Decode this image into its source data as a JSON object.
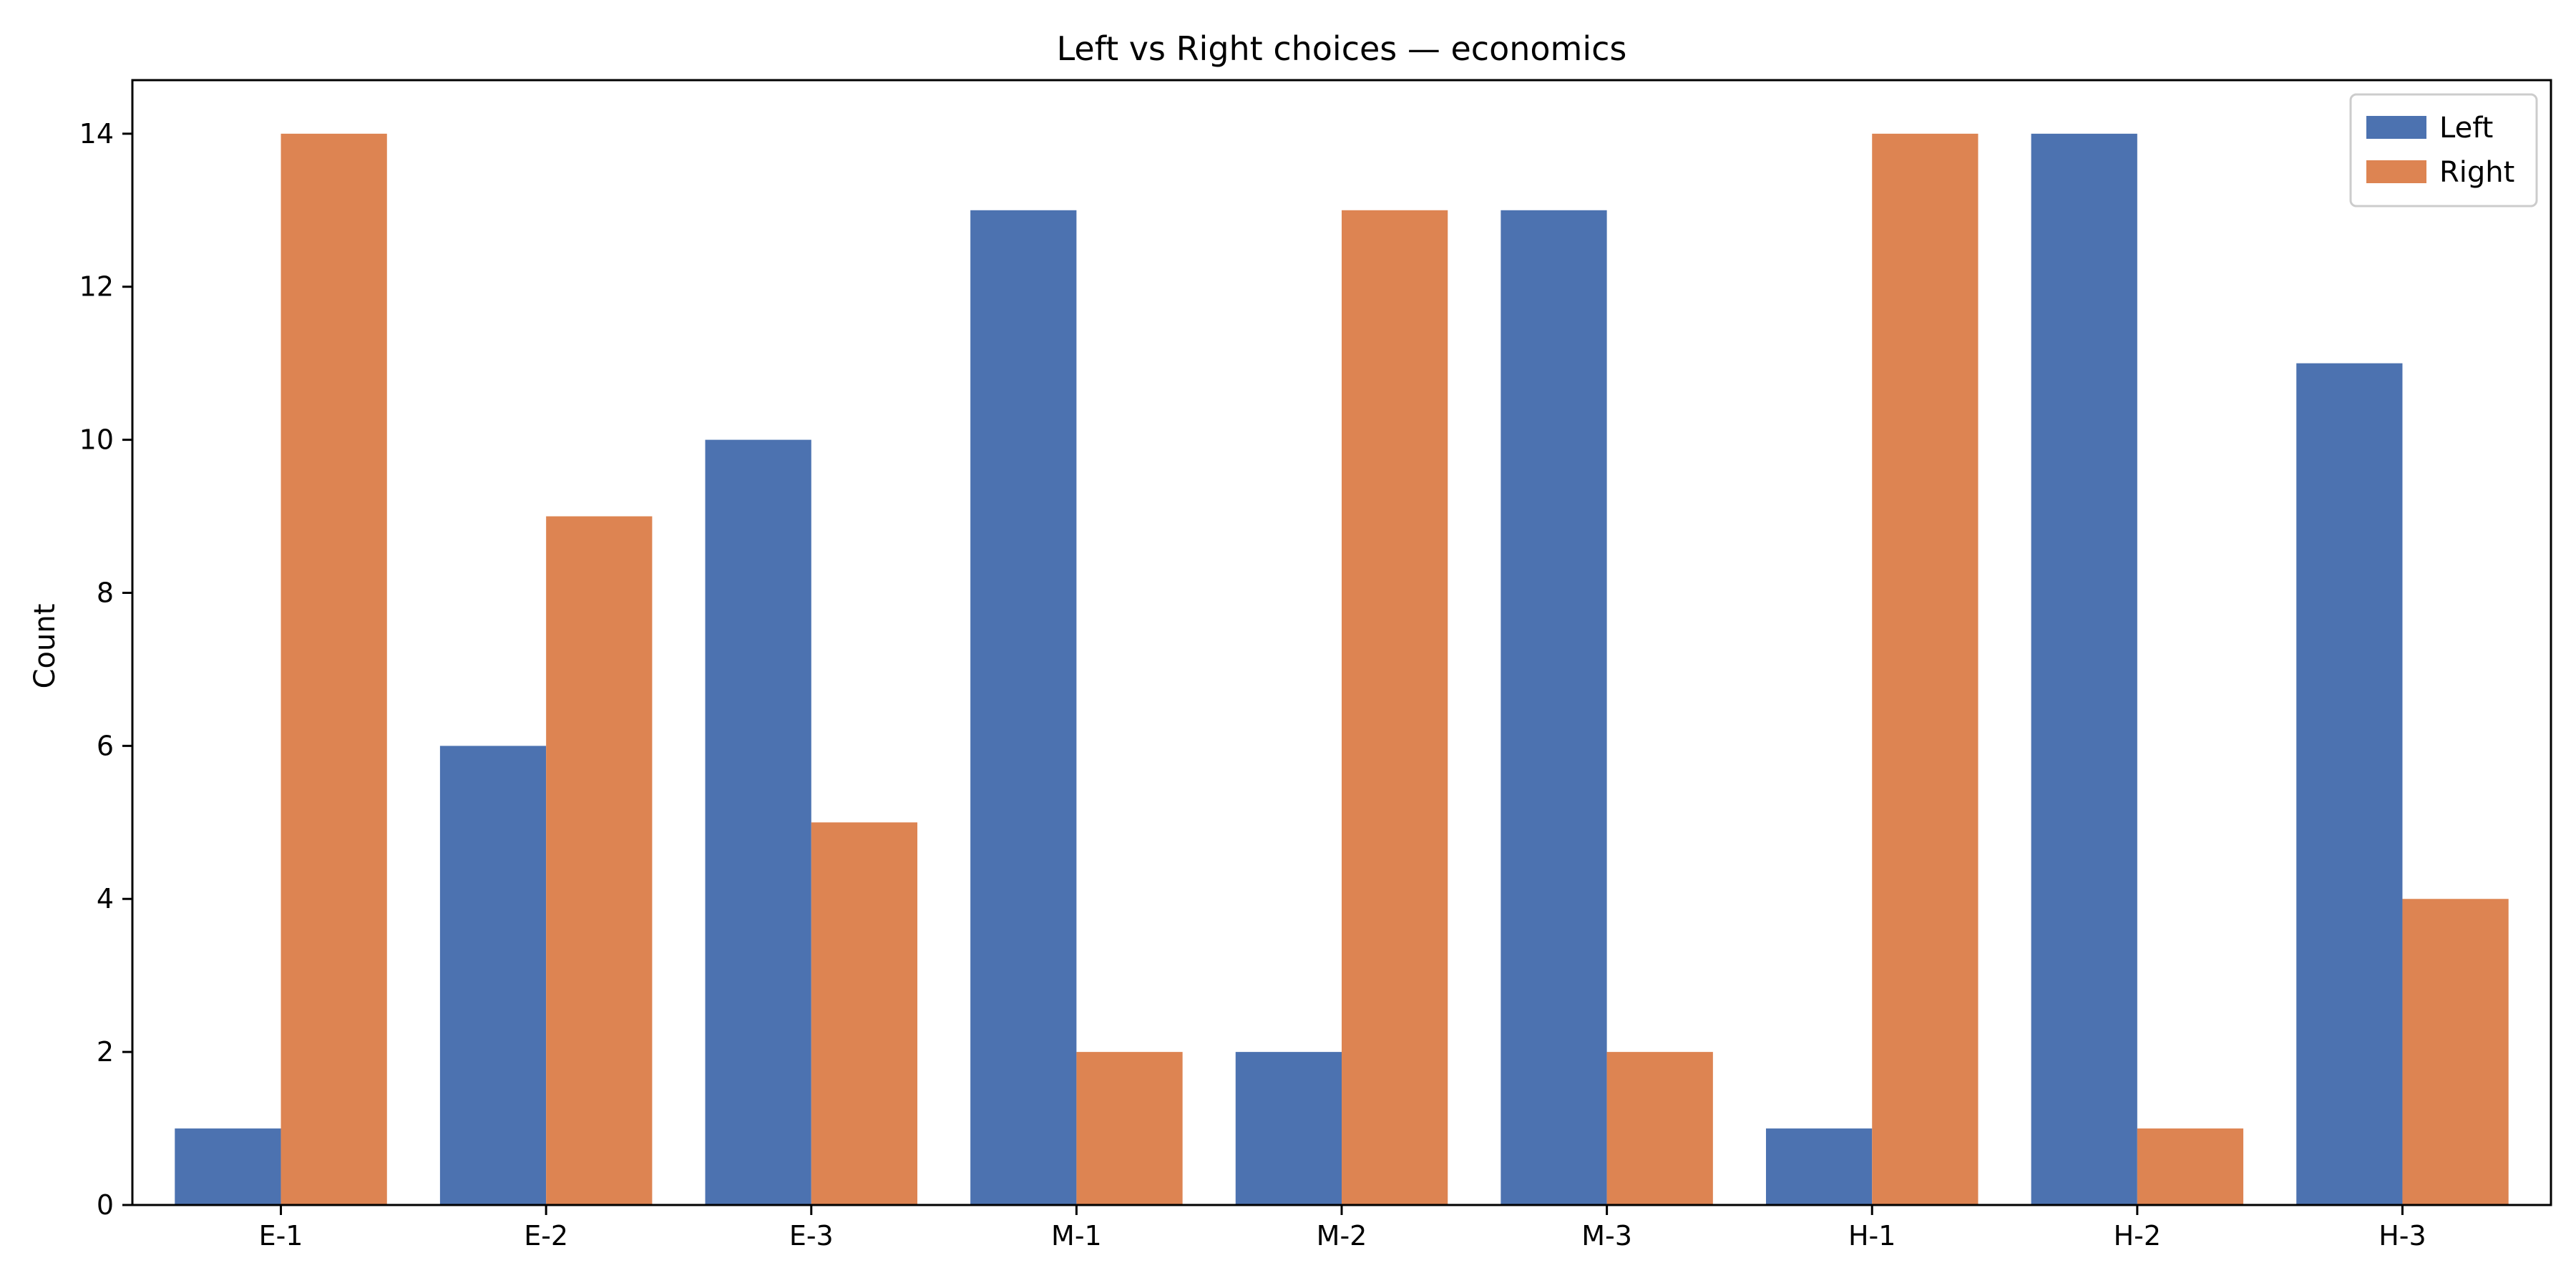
{
  "chart_data": {
    "type": "bar",
    "title": "Left vs Right choices — economics",
    "xlabel": "",
    "ylabel": "Count",
    "categories": [
      "E-1",
      "E-2",
      "E-3",
      "M-1",
      "M-2",
      "M-3",
      "H-1",
      "H-2",
      "H-3"
    ],
    "series": [
      {
        "name": "Left",
        "color": "#4c72b0",
        "values": [
          1,
          6,
          10,
          13,
          2,
          13,
          1,
          14,
          11
        ]
      },
      {
        "name": "Right",
        "color": "#dd8452",
        "values": [
          14,
          9,
          5,
          2,
          13,
          2,
          14,
          1,
          4
        ]
      }
    ],
    "ylim": [
      0,
      14.7
    ],
    "yticks": [
      0,
      2,
      4,
      6,
      8,
      10,
      12,
      14
    ],
    "grid": false,
    "legend": "top-right"
  }
}
